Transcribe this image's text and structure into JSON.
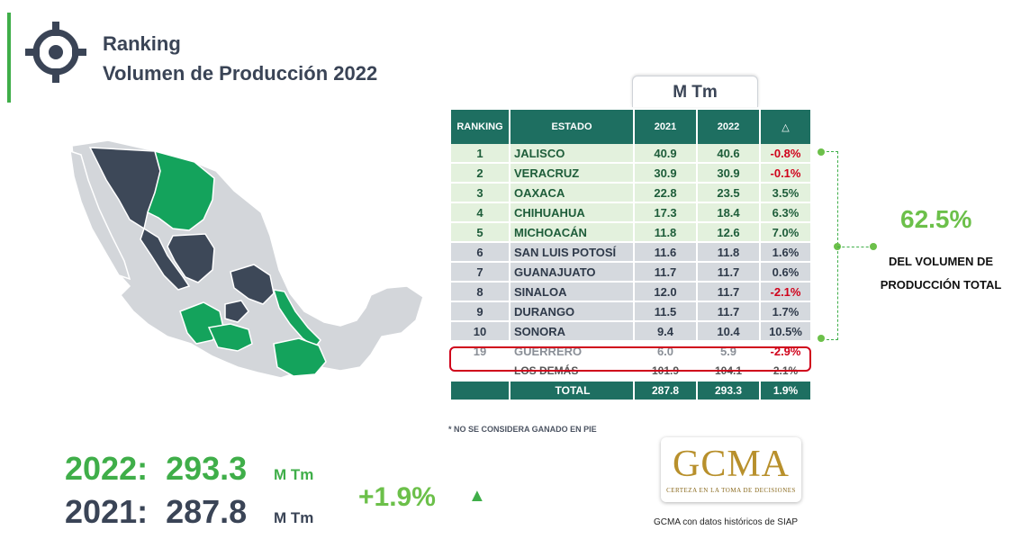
{
  "title": {
    "line1": "Ranking",
    "line2": "Volumen de Producción 2022"
  },
  "table": {
    "unit_header": "M Tm",
    "columns": {
      "ranking": "RANKING",
      "estado": "ESTADO",
      "y2021": "2021",
      "y2022": "2022",
      "delta": "△"
    },
    "rows": [
      {
        "rank": "1",
        "state": "JALISCO",
        "v2021": "40.9",
        "v2022": "40.6",
        "delta": "-0.8%"
      },
      {
        "rank": "2",
        "state": "VERACRUZ",
        "v2021": "30.9",
        "v2022": "30.9",
        "delta": "-0.1%"
      },
      {
        "rank": "3",
        "state": "OAXACA",
        "v2021": "22.8",
        "v2022": "23.5",
        "delta": "3.5%"
      },
      {
        "rank": "4",
        "state": "CHIHUAHUA",
        "v2021": "17.3",
        "v2022": "18.4",
        "delta": "6.3%"
      },
      {
        "rank": "5",
        "state": "MICHOACÁN",
        "v2021": "11.8",
        "v2022": "12.6",
        "delta": "7.0%"
      },
      {
        "rank": "6",
        "state": "SAN LUIS POTOSÍ",
        "v2021": "11.6",
        "v2022": "11.8",
        "delta": "1.6%"
      },
      {
        "rank": "7",
        "state": "GUANAJUATO",
        "v2021": "11.7",
        "v2022": "11.7",
        "delta": "0.6%"
      },
      {
        "rank": "8",
        "state": "SINALOA",
        "v2021": "12.0",
        "v2022": "11.7",
        "delta": "-2.1%"
      },
      {
        "rank": "9",
        "state": "DURANGO",
        "v2021": "11.5",
        "v2022": "11.7",
        "delta": "1.7%"
      },
      {
        "rank": "10",
        "state": "SONORA",
        "v2021": "9.4",
        "v2022": "10.4",
        "delta": "10.5%"
      },
      {
        "rank": "19",
        "state": "GUERRERO",
        "v2021": "6.0",
        "v2022": "5.9",
        "delta": "-2.9%"
      },
      {
        "rank": "",
        "state": "LOS DEMÁS",
        "v2021": "101.9",
        "v2022": "104.1",
        "delta": "2.1%"
      },
      {
        "rank": "",
        "state": "TOTAL",
        "v2021": "287.8",
        "v2022": "293.3",
        "delta": "1.9%"
      }
    ]
  },
  "share": {
    "value": "62.5%",
    "label_line1": "DEL VOLUMEN DE",
    "label_line2": "PRODUCCIÓN TOTAL"
  },
  "footnote": "* NO SE CONSIDERA GANADO EN PIE",
  "summary": {
    "label_2022": "2022:",
    "value_2022": "293.3",
    "unit_2022": "M Tm",
    "label_2021": "2021:",
    "value_2021": "287.8",
    "unit_2021": "M Tm",
    "growth": "+1.9%",
    "growth_icon": "up-triangle-icon"
  },
  "logo": {
    "text": "GCMA",
    "tagline": "CERTEZA EN LA TOMA DE DECISIONES"
  },
  "credit": "GCMA con datos históricos de SIAP",
  "colors": {
    "green": "#3fae49",
    "teal_header": "#1e6f61",
    "dark": "#3a4456",
    "negative": "#d0021b"
  },
  "chart_data": {
    "type": "table",
    "title": "Volumen de Producción 2022",
    "columns": [
      "RANKING",
      "ESTADO",
      "2021",
      "2022",
      "△"
    ],
    "rows": [
      [
        "1",
        "JALISCO",
        40.9,
        40.6,
        "-0.8%"
      ],
      [
        "2",
        "VERACRUZ",
        30.9,
        30.9,
        "-0.1%"
      ],
      [
        "3",
        "OAXACA",
        22.8,
        23.5,
        "3.5%"
      ],
      [
        "4",
        "CHIHUAHUA",
        17.3,
        18.4,
        "6.3%"
      ],
      [
        "5",
        "MICHOACÁN",
        11.8,
        12.6,
        "7.0%"
      ],
      [
        "6",
        "SAN LUIS POTOSÍ",
        11.6,
        11.8,
        "1.6%"
      ],
      [
        "7",
        "GUANAJUATO",
        11.7,
        11.7,
        "0.6%"
      ],
      [
        "8",
        "SINALOA",
        12.0,
        11.7,
        "-2.1%"
      ],
      [
        "9",
        "DURANGO",
        11.5,
        11.7,
        "1.7%"
      ],
      [
        "10",
        "SONORA",
        9.4,
        10.4,
        "10.5%"
      ],
      [
        "19",
        "GUERRERO",
        6.0,
        5.9,
        "-2.9%"
      ],
      [
        "",
        "LOS DEMÁS",
        101.9,
        104.1,
        "2.1%"
      ],
      [
        "",
        "TOTAL",
        287.8,
        293.3,
        "1.9%"
      ]
    ]
  }
}
